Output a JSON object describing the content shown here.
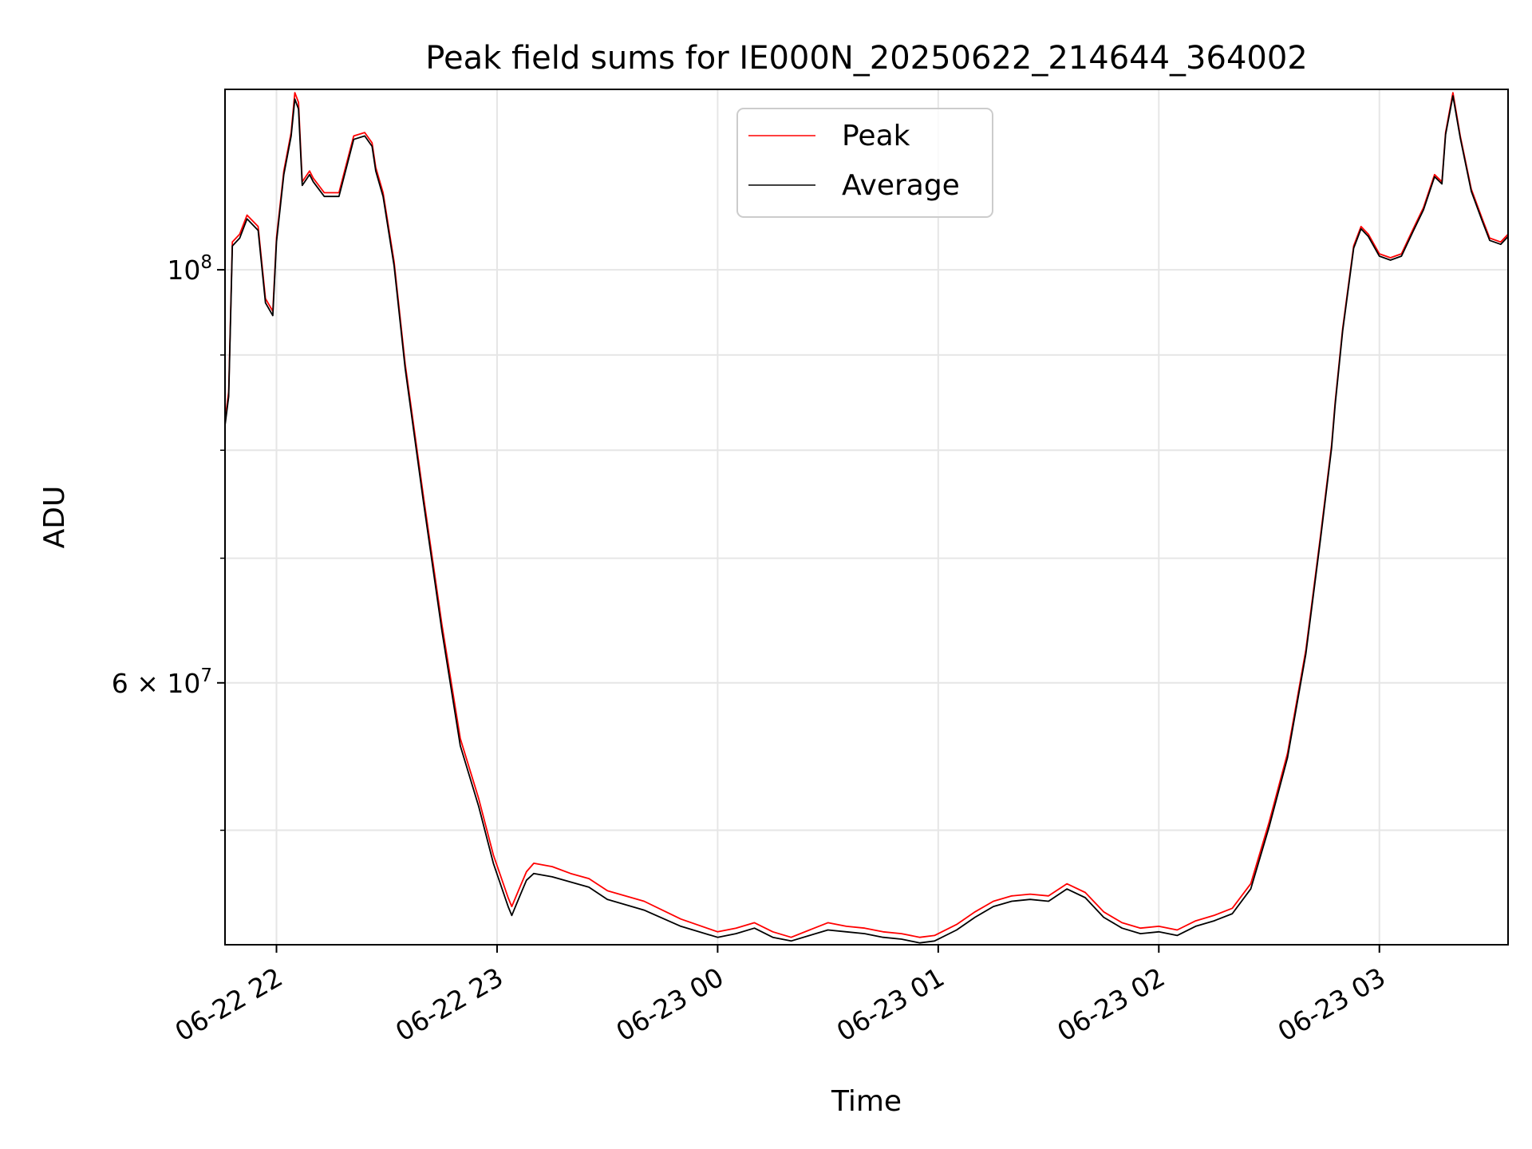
{
  "chart_data": {
    "type": "line",
    "title": "Peak field sums for IE000N_20250622_214644_364002",
    "xlabel": "Time",
    "ylabel": "ADU",
    "y_scale": "log",
    "grid": true,
    "legend_position": "top-center",
    "xlim": [
      "06-22 21:46",
      "06-23 03:35"
    ],
    "ylim": [
      43400000,
      125000000
    ],
    "x_tick_labels": [
      "06-22 22",
      "06-22 23",
      "06-23 00",
      "06-23 01",
      "06-23 02",
      "06-23 03"
    ],
    "x_tick_values": [
      "06-22 22:00",
      "06-22 23:00",
      "06-23 00:00",
      "06-23 01:00",
      "06-23 02:00",
      "06-23 03:00"
    ],
    "y_tick_labels_major": [
      {
        "value": 100000000,
        "base": "10",
        "exp": "8",
        "mantissa": ""
      },
      {
        "value": 60000000,
        "base": "10",
        "exp": "7",
        "mantissa": "6"
      }
    ],
    "y_minor_ticks": [
      90000000,
      80000000,
      70000000,
      50000000
    ],
    "series": [
      {
        "name": "Peak",
        "color": "#ff0000",
        "x": [
          "06-22 21:46",
          "06-22 21:47",
          "06-22 21:48",
          "06-22 21:50",
          "06-22 21:52",
          "06-22 21:55",
          "06-22 21:57",
          "06-22 21:59",
          "06-22 22:00",
          "06-22 22:02",
          "06-22 22:04",
          "06-22 22:05",
          "06-22 22:06",
          "06-22 22:07",
          "06-22 22:09",
          "06-22 22:10",
          "06-22 22:13",
          "06-22 22:17",
          "06-22 22:21",
          "06-22 22:24",
          "06-22 22:26",
          "06-22 22:27",
          "06-22 22:29",
          "06-22 22:32",
          "06-22 22:35",
          "06-22 22:40",
          "06-22 22:45",
          "06-22 22:50",
          "06-22 22:55",
          "06-22 22:59",
          "06-22 23:03",
          "06-22 23:04",
          "06-22 23:06",
          "06-22 23:08",
          "06-22 23:10",
          "06-22 23:15",
          "06-22 23:20",
          "06-22 23:25",
          "06-22 23:30",
          "06-22 23:40",
          "06-22 23:50",
          "06-23 00:00",
          "06-23 00:05",
          "06-23 00:10",
          "06-23 00:15",
          "06-23 00:20",
          "06-23 00:25",
          "06-23 00:30",
          "06-23 00:35",
          "06-23 00:40",
          "06-23 00:45",
          "06-23 00:50",
          "06-23 00:55",
          "06-23 00:59",
          "06-23 01:05",
          "06-23 01:10",
          "06-23 01:15",
          "06-23 01:20",
          "06-23 01:25",
          "06-23 01:30",
          "06-23 01:35",
          "06-23 01:40",
          "06-23 01:45",
          "06-23 01:50",
          "06-23 01:55",
          "06-23 02:00",
          "06-23 02:05",
          "06-23 02:10",
          "06-23 02:15",
          "06-23 02:20",
          "06-23 02:25",
          "06-23 02:30",
          "06-23 02:35",
          "06-23 02:40",
          "06-23 02:44",
          "06-23 02:47",
          "06-23 02:48",
          "06-23 02:50",
          "06-23 02:53",
          "06-23 02:55",
          "06-23 02:57",
          "06-23 03:00",
          "06-23 03:03",
          "06-23 03:06",
          "06-23 03:09",
          "06-23 03:12",
          "06-23 03:15",
          "06-23 03:17",
          "06-23 03:18",
          "06-23 03:20",
          "06-23 03:22",
          "06-23 03:25",
          "06-23 03:28",
          "06-23 03:30",
          "06-23 03:33",
          "06-23 03:35"
        ],
        "values": [
          83000000,
          86000000,
          103500000,
          104500000,
          107000000,
          105500000,
          96500000,
          95000000,
          104000000,
          113000000,
          118500000,
          124500000,
          123000000,
          111500000,
          113000000,
          112000000,
          110000000,
          110000000,
          118000000,
          118500000,
          117000000,
          113500000,
          110000000,
          101000000,
          89000000,
          75500000,
          64500000,
          56000000,
          52000000,
          48500000,
          46000000,
          45500000,
          46500000,
          47500000,
          48000000,
          47800000,
          47400000,
          47100000,
          46400000,
          45800000,
          44800000,
          44100000,
          44300000,
          44600000,
          44100000,
          43800000,
          44200000,
          44600000,
          44400000,
          44300000,
          44100000,
          44000000,
          43800000,
          43900000,
          44500000,
          45200000,
          45800000,
          46100000,
          46200000,
          46100000,
          46800000,
          46300000,
          45200000,
          44600000,
          44300000,
          44400000,
          44200000,
          44700000,
          45000000,
          45400000,
          46800000,
          50500000,
          55000000,
          62500000,
          72000000,
          80500000,
          85000000,
          93000000,
          103000000,
          105500000,
          104500000,
          102000000,
          101500000,
          102000000,
          105000000,
          108000000,
          112500000,
          111500000,
          118500000,
          124500000,
          118000000,
          110500000,
          106500000,
          104000000,
          103500000,
          104500000
        ]
      },
      {
        "name": "Average",
        "color": "#000000",
        "x": [
          "06-22 21:46",
          "06-22 21:47",
          "06-22 21:48",
          "06-22 21:50",
          "06-22 21:52",
          "06-22 21:55",
          "06-22 21:57",
          "06-22 21:59",
          "06-22 22:00",
          "06-22 22:02",
          "06-22 22:04",
          "06-22 22:05",
          "06-22 22:06",
          "06-22 22:07",
          "06-22 22:09",
          "06-22 22:10",
          "06-22 22:13",
          "06-22 22:17",
          "06-22 22:21",
          "06-22 22:24",
          "06-22 22:26",
          "06-22 22:27",
          "06-22 22:29",
          "06-22 22:32",
          "06-22 22:35",
          "06-22 22:40",
          "06-22 22:45",
          "06-22 22:50",
          "06-22 22:55",
          "06-22 22:59",
          "06-22 23:03",
          "06-22 23:04",
          "06-22 23:06",
          "06-22 23:08",
          "06-22 23:10",
          "06-22 23:15",
          "06-22 23:20",
          "06-22 23:25",
          "06-22 23:30",
          "06-22 23:40",
          "06-22 23:50",
          "06-23 00:00",
          "06-23 00:05",
          "06-23 00:10",
          "06-23 00:15",
          "06-23 00:20",
          "06-23 00:25",
          "06-23 00:30",
          "06-23 00:35",
          "06-23 00:40",
          "06-23 00:45",
          "06-23 00:50",
          "06-23 00:55",
          "06-23 00:59",
          "06-23 01:05",
          "06-23 01:10",
          "06-23 01:15",
          "06-23 01:20",
          "06-23 01:25",
          "06-23 01:30",
          "06-23 01:35",
          "06-23 01:40",
          "06-23 01:45",
          "06-23 01:50",
          "06-23 01:55",
          "06-23 02:00",
          "06-23 02:05",
          "06-23 02:10",
          "06-23 02:15",
          "06-23 02:20",
          "06-23 02:25",
          "06-23 02:30",
          "06-23 02:35",
          "06-23 02:40",
          "06-23 02:44",
          "06-23 02:47",
          "06-23 02:48",
          "06-23 02:50",
          "06-23 02:53",
          "06-23 02:55",
          "06-23 02:57",
          "06-23 03:00",
          "06-23 03:03",
          "06-23 03:06",
          "06-23 03:09",
          "06-23 03:12",
          "06-23 03:15",
          "06-23 03:17",
          "06-23 03:18",
          "06-23 03:20",
          "06-23 03:22",
          "06-23 03:25",
          "06-23 03:28",
          "06-23 03:30",
          "06-23 03:33",
          "06-23 03:35"
        ],
        "values": [
          82500000,
          85500000,
          103000000,
          104000000,
          106500000,
          105000000,
          96000000,
          94500000,
          103500000,
          112500000,
          118000000,
          123500000,
          122000000,
          111000000,
          112500000,
          111500000,
          109500000,
          109500000,
          117500000,
          118000000,
          116500000,
          113000000,
          109500000,
          100500000,
          88500000,
          75000000,
          64000000,
          55500000,
          51500000,
          48000000,
          45500000,
          45000000,
          46000000,
          47000000,
          47400000,
          47200000,
          46900000,
          46600000,
          45900000,
          45300000,
          44400000,
          43800000,
          44000000,
          44300000,
          43800000,
          43600000,
          43900000,
          44200000,
          44100000,
          44000000,
          43800000,
          43700000,
          43500000,
          43600000,
          44200000,
          44900000,
          45500000,
          45800000,
          45900000,
          45800000,
          46500000,
          46000000,
          44900000,
          44300000,
          44000000,
          44100000,
          43900000,
          44400000,
          44700000,
          45100000,
          46500000,
          50200000,
          54700000,
          62200000,
          71700000,
          80200000,
          84700000,
          92700000,
          102700000,
          105200000,
          104200000,
          101700000,
          101200000,
          101700000,
          104700000,
          107700000,
          112200000,
          111200000,
          118200000,
          124000000,
          117700000,
          110200000,
          106200000,
          103700000,
          103200000,
          104200000
        ]
      }
    ]
  }
}
